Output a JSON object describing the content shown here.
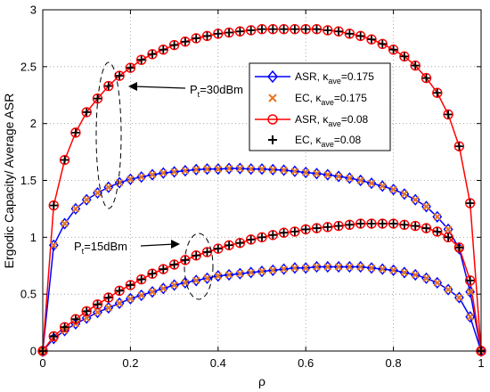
{
  "chart_data": {
    "type": "line",
    "xlabel": "ρ",
    "ylabel": "Ergodic Capacity/ Average ASR",
    "xlim": [
      0,
      1
    ],
    "ylim": [
      0,
      3
    ],
    "xticks": [
      "0",
      "0.2",
      "0.4",
      "0.6",
      "0.8",
      "1"
    ],
    "yticks": [
      "0",
      "0.5",
      "1",
      "1.5",
      "2",
      "2.5",
      "3"
    ],
    "grid": true,
    "legend_position": "top-right",
    "legend": [
      {
        "label": "ASR, κave=0.175",
        "main": "ASR, κ",
        "sub": "ave",
        "rest": "=0.175",
        "color": "#0000ff",
        "marker": "diamond",
        "line": true
      },
      {
        "label": "EC, κave=0.175",
        "main": "EC, κ",
        "sub": "ave",
        "rest": "=0.175",
        "color": "#e87722",
        "marker": "x",
        "line": false
      },
      {
        "label": "ASR, κave=0.08",
        "main": "ASR, κ",
        "sub": "ave",
        "rest": "=0.08",
        "color": "#ff0000",
        "marker": "circle",
        "line": true
      },
      {
        "label": "EC, κave=0.08",
        "main": "EC, κ",
        "sub": "ave",
        "rest": "=0.08",
        "color": "#000000",
        "marker": "plus",
        "line": false
      }
    ],
    "annotations": [
      {
        "text": "Pt=30dBm",
        "main": "P",
        "sub": "t",
        "rest": "=30dBm"
      },
      {
        "text": "Pt=15dBm",
        "main": "P",
        "sub": "t",
        "rest": "=15dBm"
      }
    ],
    "x": [
      0,
      0.025,
      0.05,
      0.075,
      0.1,
      0.125,
      0.15,
      0.175,
      0.2,
      0.225,
      0.25,
      0.275,
      0.3,
      0.325,
      0.35,
      0.375,
      0.4,
      0.425,
      0.45,
      0.475,
      0.5,
      0.525,
      0.55,
      0.575,
      0.6,
      0.625,
      0.65,
      0.675,
      0.7,
      0.725,
      0.75,
      0.775,
      0.8,
      0.825,
      0.85,
      0.875,
      0.9,
      0.925,
      0.95,
      0.975,
      1
    ],
    "series": [
      {
        "group": "Pt=30dBm",
        "kappa": "0.175",
        "asr_color": "#0000ff",
        "ec_color": "#e87722",
        "asr_marker": "diamond",
        "ec_marker": "x",
        "values": [
          0,
          0.93,
          1.12,
          1.25,
          1.33,
          1.39,
          1.44,
          1.48,
          1.51,
          1.53,
          1.55,
          1.565,
          1.575,
          1.585,
          1.595,
          1.6,
          1.6,
          1.605,
          1.605,
          1.6,
          1.6,
          1.595,
          1.59,
          1.58,
          1.57,
          1.56,
          1.55,
          1.535,
          1.52,
          1.5,
          1.475,
          1.45,
          1.42,
          1.38,
          1.33,
          1.27,
          1.18,
          1.07,
          0.9,
          0.52,
          0
        ]
      },
      {
        "group": "Pt=30dBm",
        "kappa": "0.08",
        "asr_color": "#ff0000",
        "ec_color": "#000000",
        "asr_marker": "circle",
        "ec_marker": "plus",
        "values": [
          0,
          1.28,
          1.68,
          1.92,
          2.1,
          2.22,
          2.33,
          2.42,
          2.49,
          2.56,
          2.61,
          2.65,
          2.69,
          2.72,
          2.75,
          2.77,
          2.79,
          2.8,
          2.81,
          2.82,
          2.83,
          2.83,
          2.83,
          2.83,
          2.83,
          2.83,
          2.82,
          2.81,
          2.79,
          2.77,
          2.74,
          2.7,
          2.65,
          2.59,
          2.51,
          2.4,
          2.27,
          2.08,
          1.8,
          1.3,
          0
        ]
      },
      {
        "group": "Pt=15dBm",
        "kappa": "0.175",
        "asr_color": "#0000ff",
        "ec_color": "#e87722",
        "asr_marker": "diamond",
        "ec_marker": "x",
        "values": [
          0,
          0.11,
          0.18,
          0.24,
          0.29,
          0.34,
          0.38,
          0.42,
          0.46,
          0.49,
          0.52,
          0.55,
          0.58,
          0.6,
          0.62,
          0.64,
          0.66,
          0.67,
          0.68,
          0.69,
          0.7,
          0.71,
          0.72,
          0.73,
          0.73,
          0.74,
          0.74,
          0.74,
          0.74,
          0.74,
          0.73,
          0.72,
          0.71,
          0.69,
          0.67,
          0.64,
          0.6,
          0.54,
          0.47,
          0.3,
          0
        ]
      },
      {
        "group": "Pt=15dBm",
        "kappa": "0.08",
        "asr_color": "#ff0000",
        "ec_color": "#000000",
        "asr_marker": "circle",
        "ec_marker": "plus",
        "values": [
          0,
          0.13,
          0.21,
          0.28,
          0.35,
          0.41,
          0.47,
          0.53,
          0.58,
          0.63,
          0.68,
          0.72,
          0.76,
          0.8,
          0.84,
          0.87,
          0.9,
          0.93,
          0.95,
          0.98,
          1.0,
          1.02,
          1.04,
          1.05,
          1.07,
          1.08,
          1.09,
          1.1,
          1.11,
          1.12,
          1.12,
          1.12,
          1.12,
          1.11,
          1.1,
          1.08,
          1.05,
          1.0,
          0.91,
          0.62,
          0
        ]
      }
    ]
  }
}
